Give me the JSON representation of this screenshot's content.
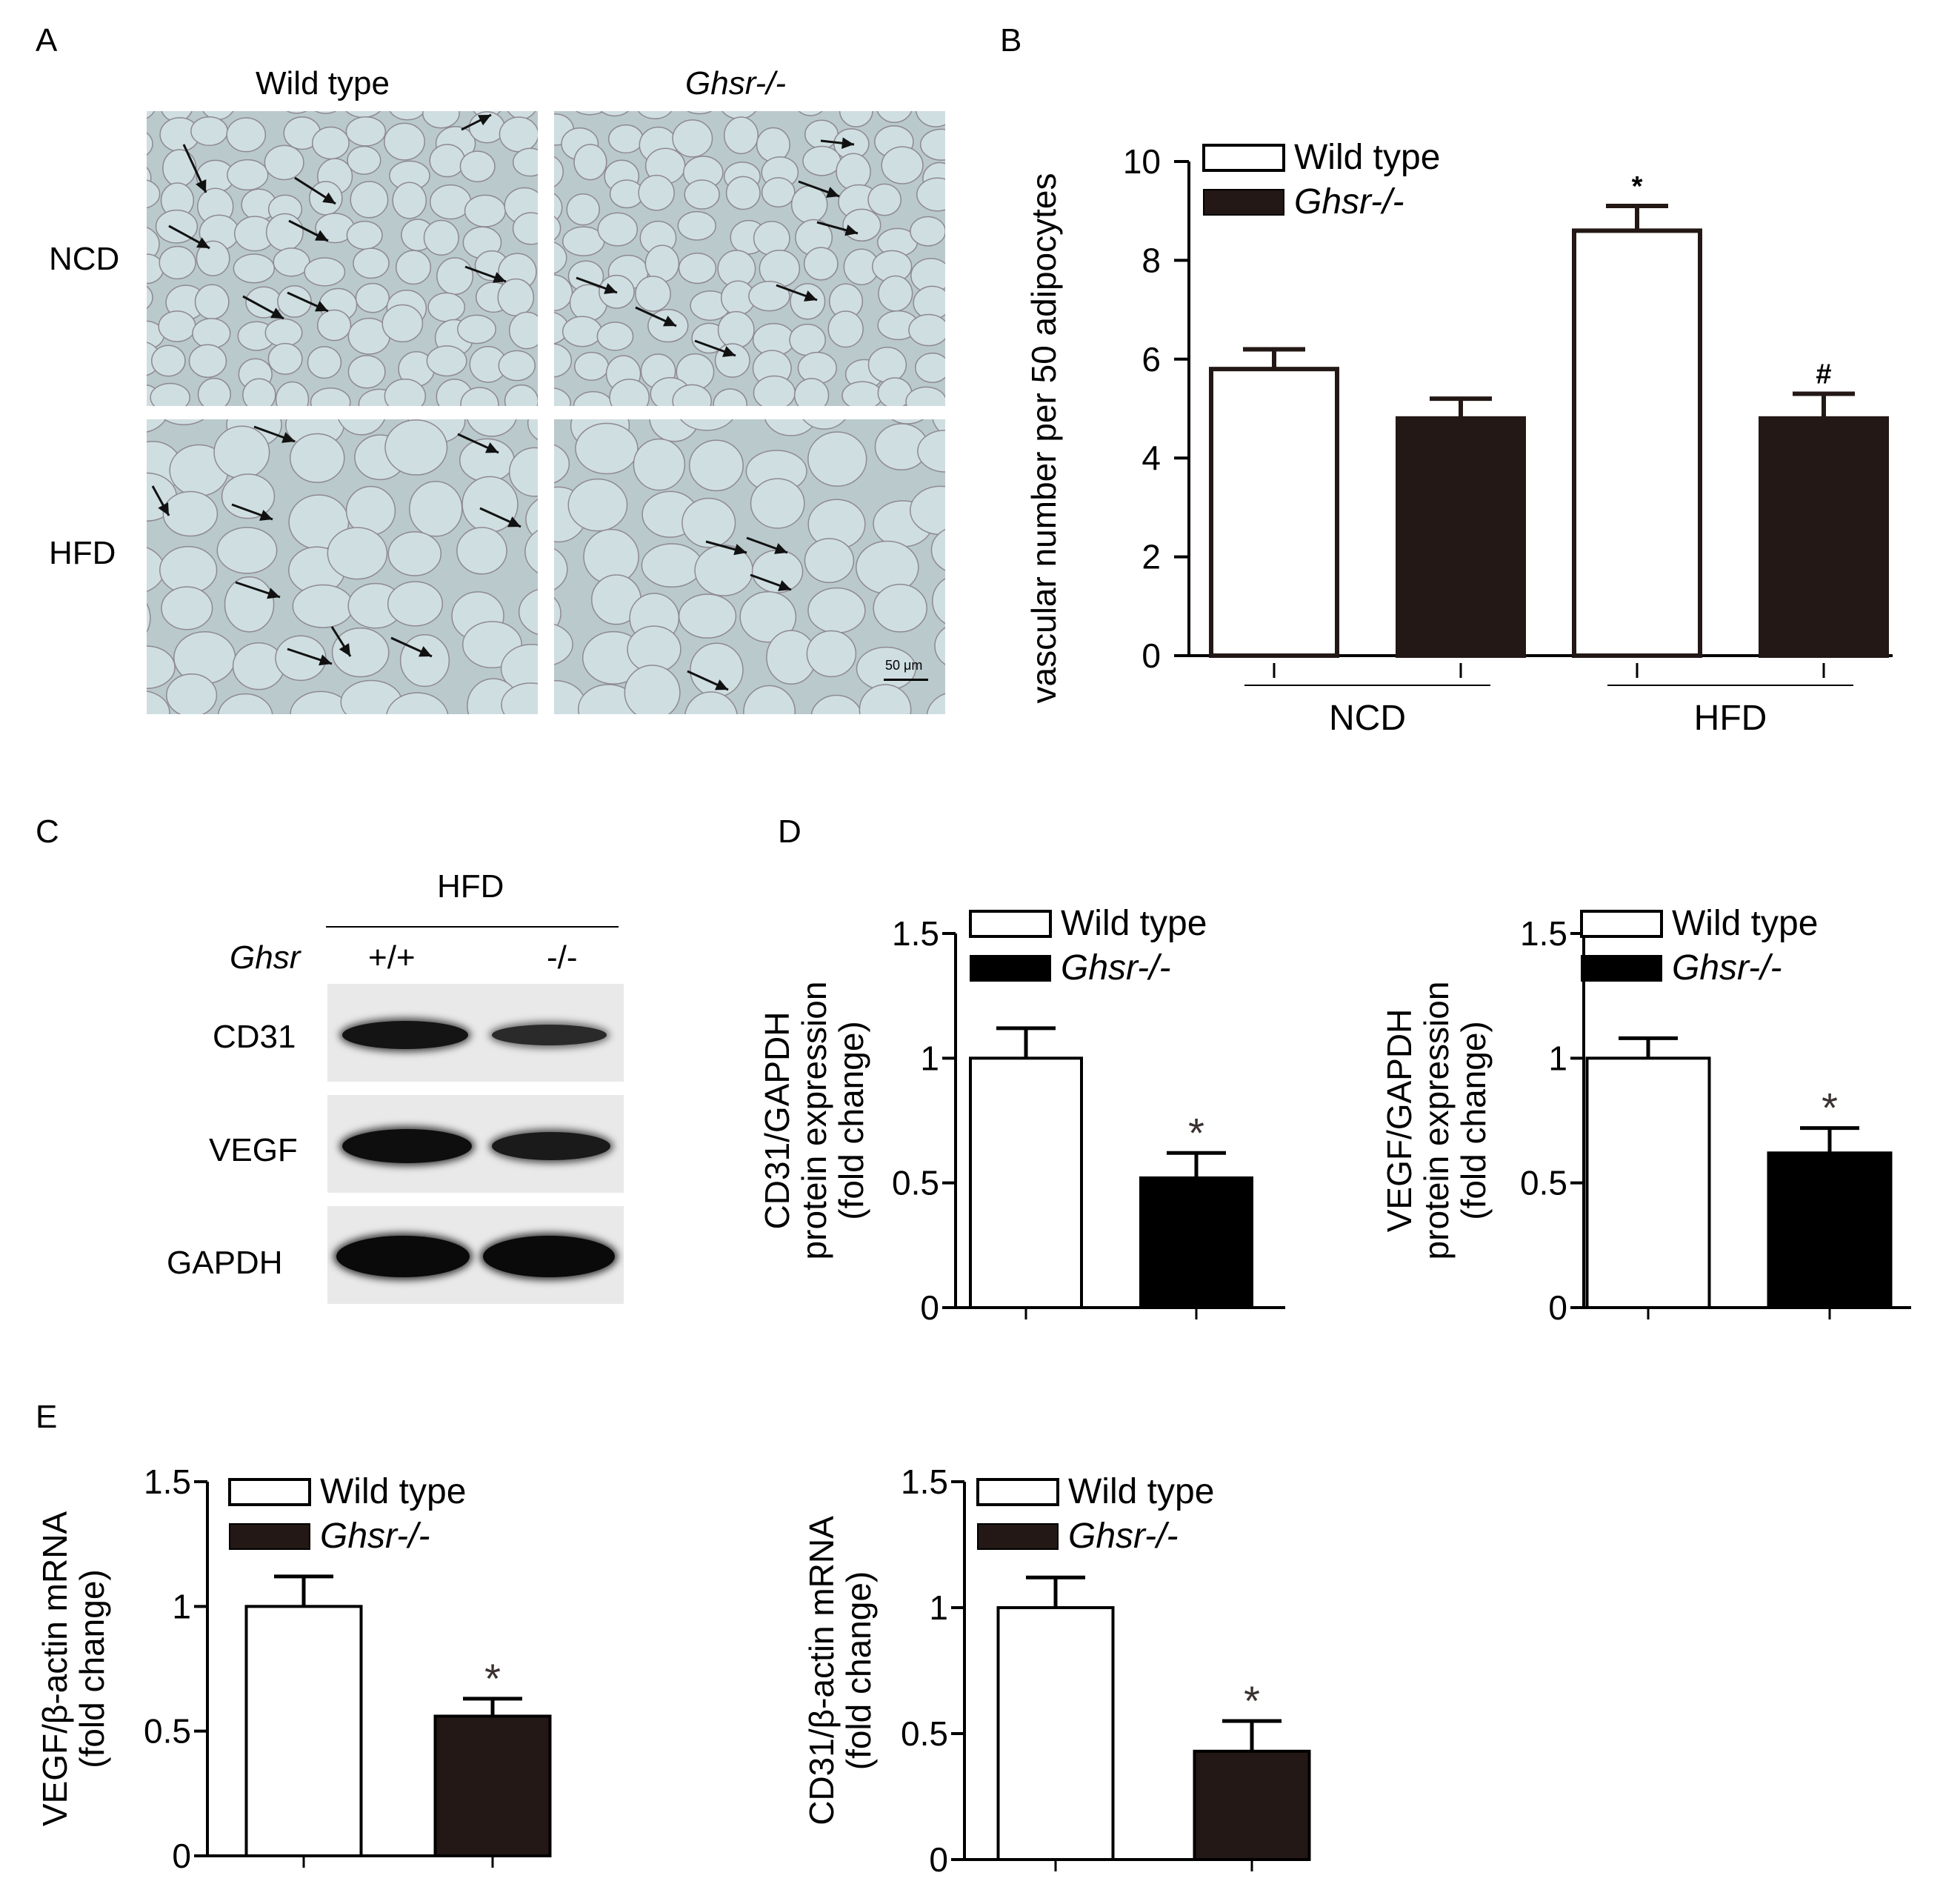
{
  "panels": {
    "A": {
      "letter": "A",
      "col_wild": "Wild type",
      "col_ghsr": "Ghsr-/-",
      "row_ncd": "NCD",
      "row_hfd": "HFD",
      "scale_bar": "50 μm"
    },
    "B": {
      "letter": "B"
    },
    "C": {
      "letter": "C",
      "title": "HFD",
      "genotype_label": "Ghsr",
      "lane1": "+/+",
      "lane2": "-/-",
      "rows": [
        "CD31",
        "VEGF",
        "GAPDH"
      ]
    },
    "D": {
      "letter": "D"
    },
    "E": {
      "letter": "E"
    }
  },
  "legend": {
    "wild": "Wild type",
    "ghsr": "Ghsr-/-"
  },
  "colors": {
    "wild_fill": "#ffffff",
    "ghsr_fill": "#231815",
    "ghsr_fill_d": "#000000",
    "axis": "#000000",
    "micro_bg": "#b9c9cc"
  },
  "chart_data": [
    {
      "id": "B",
      "type": "bar",
      "ylabel": "vascular number per 50 adipocytes",
      "groups": [
        "NCD",
        "HFD"
      ],
      "series": [
        {
          "name": "Wild type",
          "values": [
            5.8,
            8.6
          ],
          "errors": [
            0.4,
            0.5
          ]
        },
        {
          "name": "Ghsr-/-",
          "values": [
            4.8,
            4.8
          ],
          "errors": [
            0.4,
            0.5
          ]
        }
      ],
      "annotations": [
        {
          "group": 1,
          "series": 0,
          "text": "*"
        },
        {
          "group": 1,
          "series": 1,
          "text": "#"
        }
      ],
      "ylim": [
        0,
        10
      ],
      "yticks": [
        "0",
        "2",
        "4",
        "6",
        "8",
        "10"
      ]
    },
    {
      "id": "D1",
      "type": "bar",
      "ylabel_lines": [
        "CD31/GAPDH",
        "protein expression",
        "(fold change)"
      ],
      "series": [
        {
          "name": "Wild type",
          "value": 1.0,
          "error": 0.12
        },
        {
          "name": "Ghsr-/-",
          "value": 0.52,
          "error": 0.1,
          "annotation": "*"
        }
      ],
      "ylim": [
        0,
        1.5
      ],
      "yticks": [
        "0",
        "0.5",
        "1",
        "1.5"
      ]
    },
    {
      "id": "D2",
      "type": "bar",
      "ylabel_lines": [
        "VEGF/GAPDH",
        "protein expression",
        "(fold change)"
      ],
      "series": [
        {
          "name": "Wild type",
          "value": 1.0,
          "error": 0.08
        },
        {
          "name": "Ghsr-/-",
          "value": 0.62,
          "error": 0.1,
          "annotation": "*"
        }
      ],
      "ylim": [
        0,
        1.5
      ],
      "yticks": [
        "0",
        "0.5",
        "1",
        "1.5"
      ]
    },
    {
      "id": "E1",
      "type": "bar",
      "ylabel_lines": [
        "VEGF/β-actin mRNA",
        "(fold change)"
      ],
      "series": [
        {
          "name": "Wild type",
          "value": 1.0,
          "error": 0.12
        },
        {
          "name": "Ghsr-/-",
          "value": 0.56,
          "error": 0.07,
          "annotation": "*"
        }
      ],
      "ylim": [
        0,
        1.5
      ],
      "yticks": [
        "0",
        "0.5",
        "1",
        "1.5"
      ]
    },
    {
      "id": "E2",
      "type": "bar",
      "ylabel_lines": [
        "CD31/β-actin mRNA",
        "(fold change)"
      ],
      "series": [
        {
          "name": "Wild type",
          "value": 1.0,
          "error": 0.12
        },
        {
          "name": "Ghsr-/-",
          "value": 0.43,
          "error": 0.12,
          "annotation": "*"
        }
      ],
      "ylim": [
        0,
        1.5
      ],
      "yticks": [
        "0",
        "0.5",
        "1",
        "1.5"
      ]
    }
  ]
}
